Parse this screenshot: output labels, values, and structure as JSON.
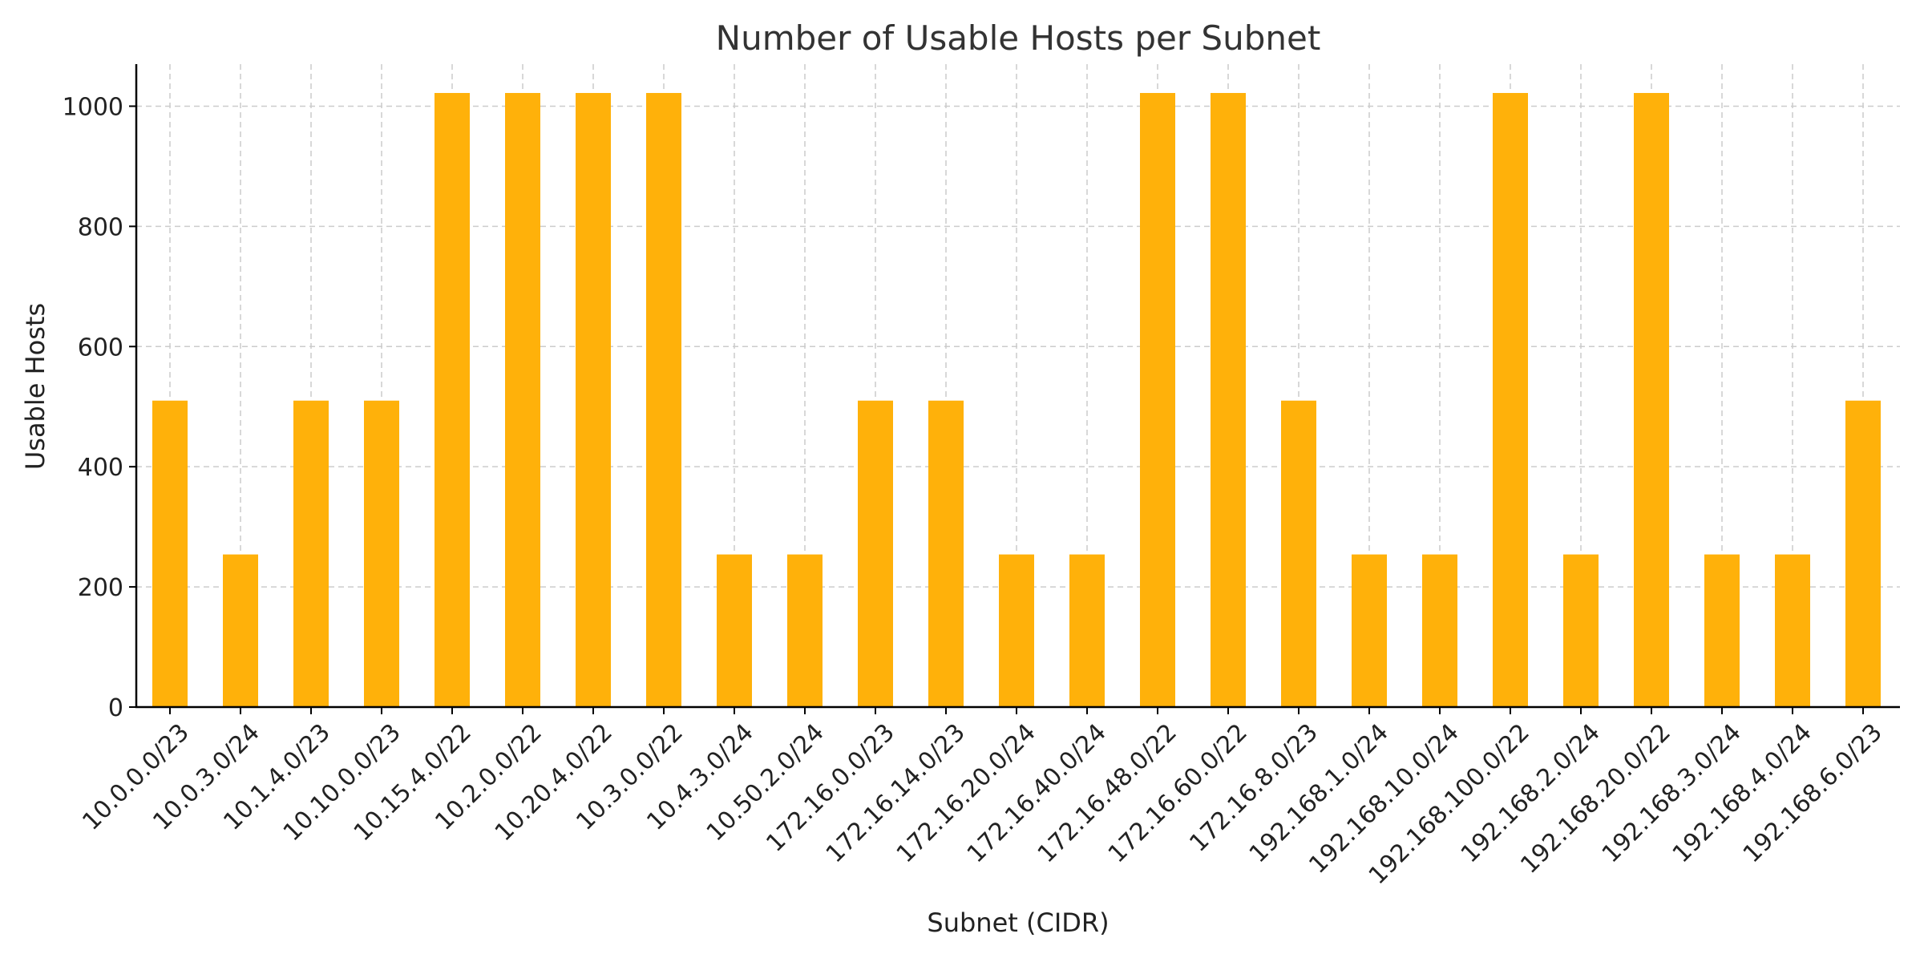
{
  "chart_data": {
    "type": "bar",
    "title": "Number of Usable Hosts per Subnet",
    "xlabel": "Subnet (CIDR)",
    "ylabel": "Usable Hosts",
    "ylim": [
      0,
      1070
    ],
    "yticks": [
      0,
      200,
      400,
      600,
      800,
      1000
    ],
    "grid": true,
    "bar_color": "#FFB10A",
    "categories": [
      "10.0.0.0/23",
      "10.0.3.0/24",
      "10.1.4.0/23",
      "10.10.0.0/23",
      "10.15.4.0/22",
      "10.2.0.0/22",
      "10.20.4.0/22",
      "10.3.0.0/22",
      "10.4.3.0/24",
      "10.50.2.0/24",
      "172.16.0.0/23",
      "172.16.14.0/23",
      "172.16.20.0/24",
      "172.16.40.0/24",
      "172.16.48.0/22",
      "172.16.60.0/22",
      "172.16.8.0/23",
      "192.168.1.0/24",
      "192.168.10.0/24",
      "192.168.100.0/22",
      "192.168.2.0/24",
      "192.168.20.0/22",
      "192.168.3.0/24",
      "192.168.4.0/24",
      "192.168.6.0/23"
    ],
    "values": [
      510,
      254,
      510,
      510,
      1022,
      1022,
      1022,
      1022,
      254,
      254,
      510,
      510,
      254,
      254,
      1022,
      1022,
      510,
      254,
      254,
      1022,
      254,
      1022,
      254,
      254,
      510
    ]
  }
}
